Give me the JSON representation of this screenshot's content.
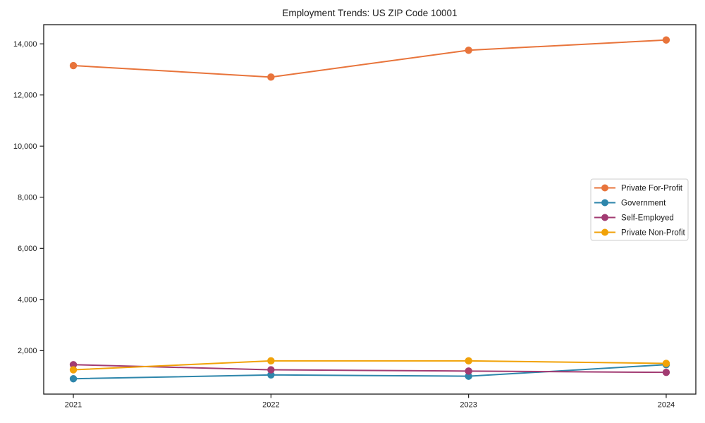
{
  "chart_data": {
    "type": "line",
    "title": "Employment Trends: US ZIP Code 10001",
    "xlabel": "",
    "ylabel": "",
    "x_values": [
      2021,
      2022,
      2023,
      2024
    ],
    "x_labels": [
      "2021",
      "2022",
      "2023",
      "2024"
    ],
    "xlim": [
      2020.85,
      2024.15
    ],
    "ylim": [
      300,
      14750
    ],
    "y_ticks": [
      2000,
      4000,
      6000,
      8000,
      10000,
      12000,
      14000
    ],
    "y_tick_labels": [
      "2,000",
      "4,000",
      "6,000",
      "8,000",
      "10,000",
      "12,000",
      "14,000"
    ],
    "grid": false,
    "legend_position": "center-right",
    "marker": "circle",
    "series": [
      {
        "name": "Private For-Profit",
        "color": "#e8743b",
        "values": [
          13150,
          12700,
          13750,
          14150
        ]
      },
      {
        "name": "Government",
        "color": "#2e86ab",
        "values": [
          900,
          1050,
          1000,
          1450
        ]
      },
      {
        "name": "Self-Employed",
        "color": "#a23b72",
        "values": [
          1450,
          1250,
          1200,
          1150
        ]
      },
      {
        "name": "Private Non-Profit",
        "color": "#f1a208",
        "values": [
          1250,
          1600,
          1600,
          1500
        ]
      }
    ],
    "axis_color": "#1a1a1a",
    "text_color": "#1a1a1a",
    "legend_border_color": "#cccccc",
    "legend_fill_color": "#ffffff"
  }
}
